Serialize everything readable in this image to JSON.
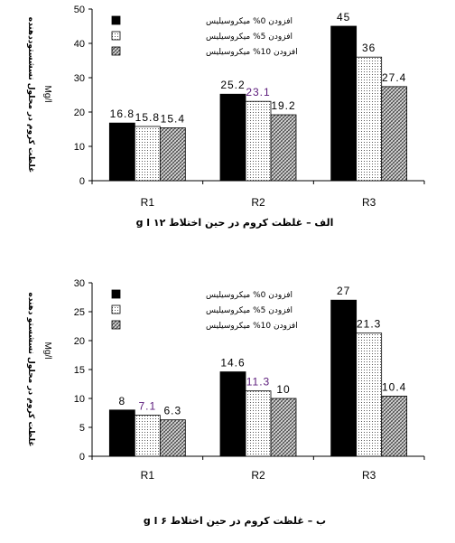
{
  "chart_data": [
    {
      "type": "bar",
      "title": "الف – غلظت کروم در حین اختلاط ۱۲ g l",
      "ylabel": "غلظت کروم در محلول نسشستوددهنده",
      "yunit": "Mg/l",
      "categories": [
        "R1",
        "R2",
        "R3"
      ],
      "ylim": [
        0,
        50
      ],
      "yticks": [
        0,
        10,
        20,
        30,
        40,
        50
      ],
      "legend_position": "top-left",
      "series": [
        {
          "name": "افزودن 0% میکروسیلیس",
          "pattern": "solid",
          "values": [
            16.8,
            25.2,
            45
          ]
        },
        {
          "name": "افزودن 5% میکروسیلیس",
          "pattern": "dots",
          "values": [
            15.8,
            23.1,
            36
          ]
        },
        {
          "name": "افزودن 10% میکروسیلیس",
          "pattern": "hatch",
          "values": [
            15.4,
            19.2,
            27.4
          ]
        }
      ],
      "data_labels": [
        [
          "16.8",
          "25.2",
          "45"
        ],
        [
          "15.8",
          "23.1",
          "36"
        ],
        [
          "15.4",
          "19.2",
          "27.4"
        ]
      ]
    },
    {
      "type": "bar",
      "title": "ب – غلظت کروم در حین اختلاط ۶ g l",
      "ylabel": "غلظت کروم در محلول نسشستو دهنده",
      "yunit": "Mg/l",
      "categories": [
        "R1",
        "R2",
        "R3"
      ],
      "ylim": [
        0,
        30
      ],
      "yticks": [
        0,
        5,
        10,
        15,
        20,
        25,
        30
      ],
      "legend_position": "top-left",
      "series": [
        {
          "name": "افزودن 0% میکروسیلیس",
          "pattern": "solid",
          "values": [
            8,
            14.6,
            27
          ]
        },
        {
          "name": "افزودن 5% میکروسیلیس",
          "pattern": "dots",
          "values": [
            7.1,
            11.3,
            21.3
          ]
        },
        {
          "name": "افزودن 10% میکروسیلیس",
          "pattern": "hatch",
          "values": [
            6.3,
            10,
            10.4
          ]
        }
      ],
      "data_labels": [
        [
          "8",
          "14.6",
          "27"
        ],
        [
          "7.1",
          "11.3",
          "21.3"
        ],
        [
          "6.3",
          "10",
          "10.4"
        ]
      ]
    }
  ],
  "colors": {
    "axis": "#000000",
    "solid": "#000000",
    "label_alt": "#5a1a7a"
  }
}
